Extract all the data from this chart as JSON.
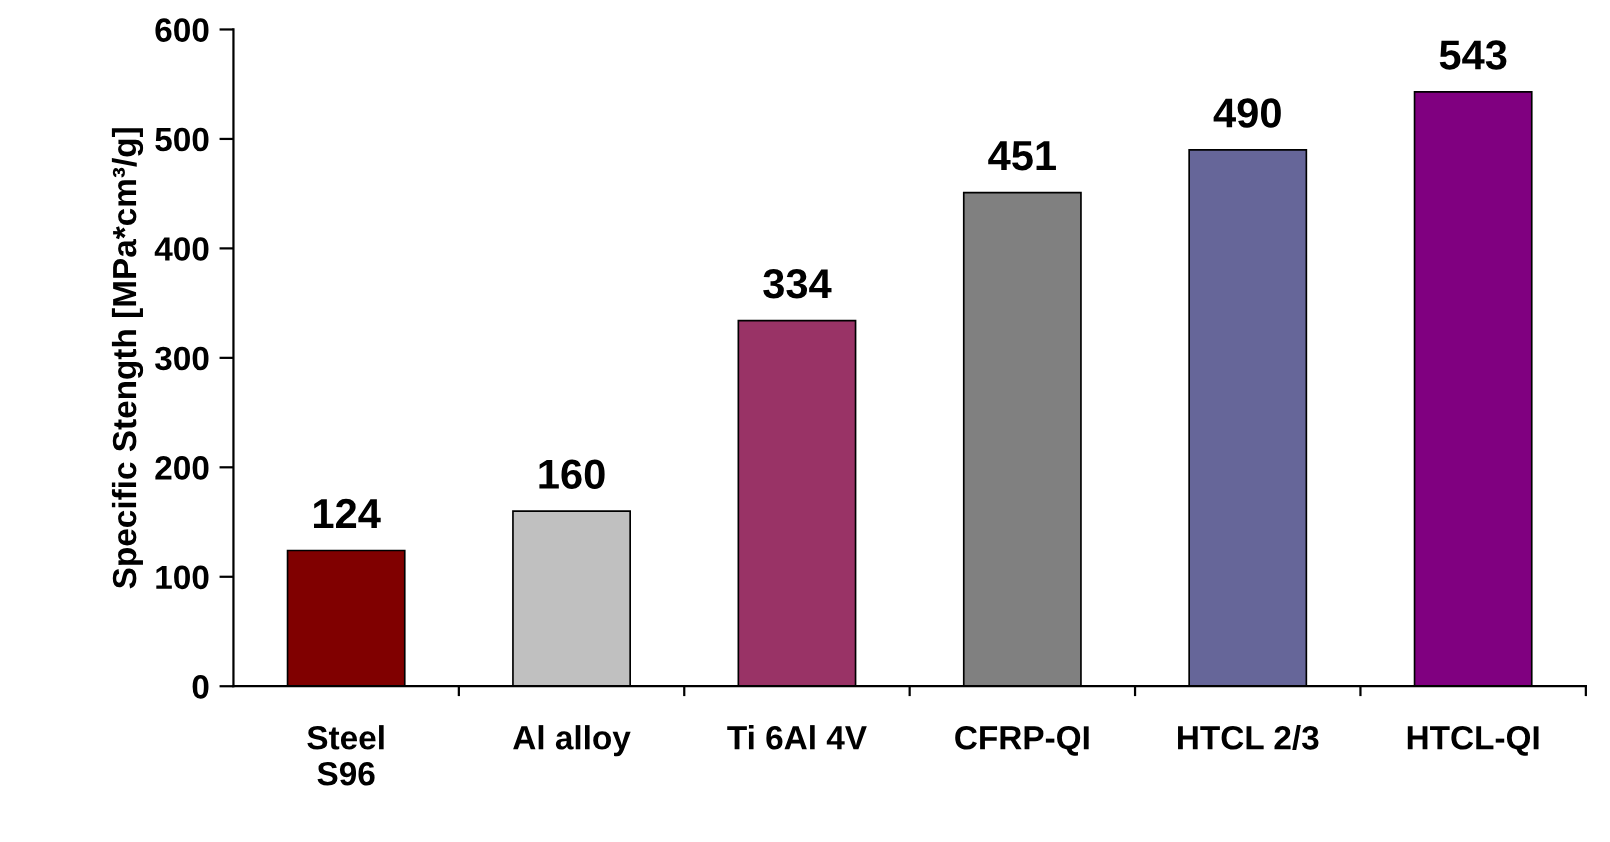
{
  "chart_data": {
    "type": "bar",
    "ylabel": "Specific Stength [MPa*cm³/g]",
    "categories": [
      "Steel\nS96",
      "Al alloy",
      "Ti 6Al 4V",
      "CFRP-QI",
      "HTCL 2/3",
      "HTCL-QI"
    ],
    "values": [
      124,
      160,
      334,
      451,
      490,
      543
    ],
    "colors": [
      "#800000",
      "#c0c0c0",
      "#993366",
      "#808080",
      "#666699",
      "#800080"
    ],
    "ylim": [
      0,
      600
    ],
    "yticks": [
      0,
      100,
      200,
      300,
      400,
      500,
      600
    ],
    "grid": false,
    "data_labels": true
  }
}
